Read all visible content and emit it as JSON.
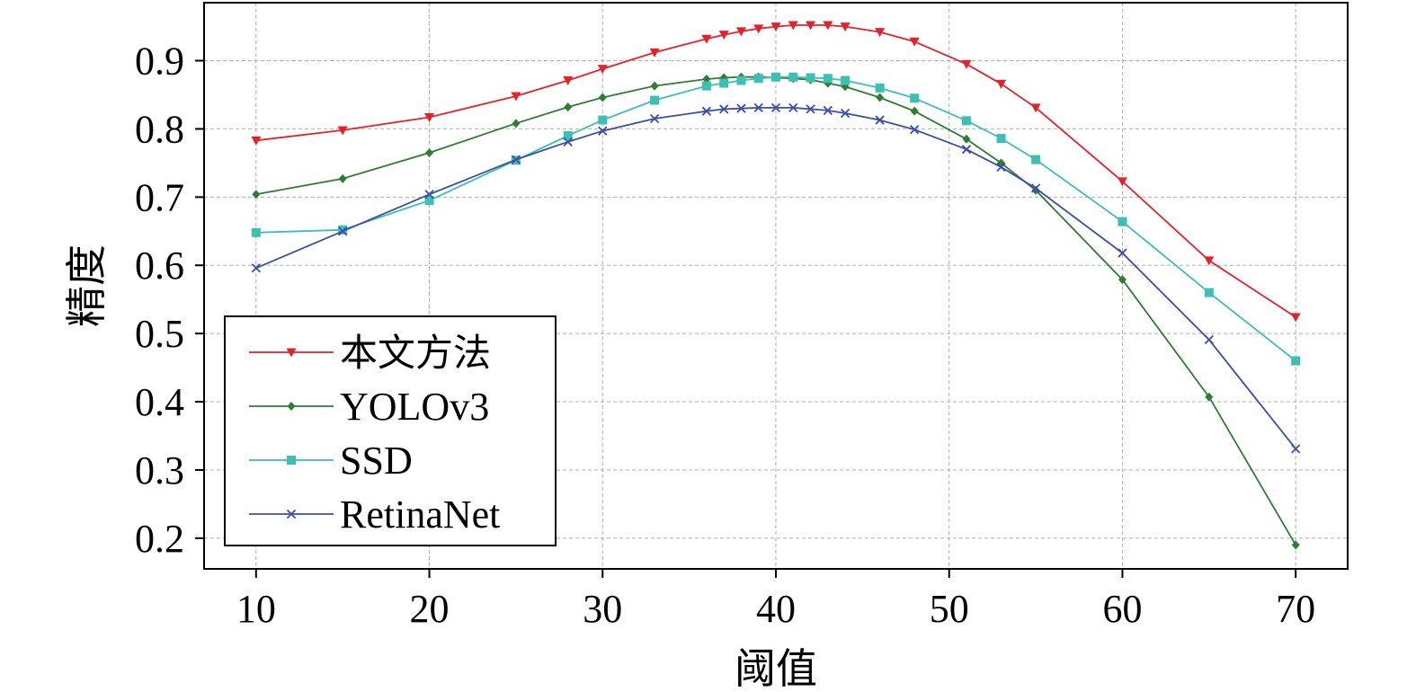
{
  "chart_data": {
    "type": "line",
    "title": "",
    "xlabel": "阈值",
    "ylabel": "精度",
    "xlim": [
      7,
      73
    ],
    "ylim": [
      0.155,
      0.985
    ],
    "xticks": [
      10,
      20,
      30,
      40,
      50,
      60,
      70
    ],
    "yticks": [
      0.2,
      0.3,
      0.4,
      0.5,
      0.6,
      0.7,
      0.8,
      0.9
    ],
    "grid": true,
    "legend_position": "bottom-left",
    "series": [
      {
        "name": "本文方法",
        "color": "#e8202a",
        "marker": "triangle-down",
        "x": [
          10,
          15,
          20,
          25,
          28,
          30,
          33,
          36,
          37,
          38,
          39,
          40,
          41,
          42,
          43,
          44,
          46,
          48,
          51,
          53,
          55,
          60,
          65,
          70
        ],
        "y": [
          0.783,
          0.798,
          0.817,
          0.848,
          0.871,
          0.888,
          0.912,
          0.932,
          0.938,
          0.943,
          0.947,
          0.95,
          0.952,
          0.952,
          0.952,
          0.95,
          0.942,
          0.928,
          0.895,
          0.866,
          0.831,
          0.723,
          0.607,
          0.524
        ]
      },
      {
        "name": "YOLOv3",
        "color": "#2e7d32",
        "marker": "diamond",
        "x": [
          10,
          15,
          20,
          25,
          28,
          30,
          33,
          36,
          37,
          38,
          39,
          40,
          41,
          42,
          43,
          44,
          46,
          48,
          51,
          53,
          55,
          60,
          65,
          70
        ],
        "y": [
          0.704,
          0.727,
          0.765,
          0.808,
          0.832,
          0.846,
          0.863,
          0.873,
          0.875,
          0.876,
          0.876,
          0.875,
          0.874,
          0.872,
          0.867,
          0.862,
          0.846,
          0.826,
          0.785,
          0.75,
          0.71,
          0.579,
          0.407,
          0.19
        ]
      },
      {
        "name": "SSD",
        "color": "#3dbfb3",
        "marker": "square",
        "x": [
          10,
          15,
          20,
          25,
          28,
          30,
          33,
          36,
          37,
          38,
          39,
          40,
          41,
          42,
          43,
          44,
          46,
          48,
          51,
          53,
          55,
          60,
          65,
          70
        ],
        "y": [
          0.648,
          0.652,
          0.695,
          0.754,
          0.79,
          0.813,
          0.842,
          0.863,
          0.867,
          0.871,
          0.874,
          0.876,
          0.876,
          0.875,
          0.874,
          0.871,
          0.86,
          0.845,
          0.812,
          0.786,
          0.755,
          0.664,
          0.56,
          0.46
        ]
      },
      {
        "name": "RetinaNet",
        "color": "#3b4fa8",
        "marker": "x",
        "x": [
          10,
          15,
          20,
          25,
          28,
          30,
          33,
          36,
          37,
          38,
          39,
          40,
          41,
          42,
          43,
          44,
          46,
          48,
          51,
          53,
          55,
          60,
          65,
          70
        ],
        "y": [
          0.596,
          0.65,
          0.704,
          0.755,
          0.781,
          0.797,
          0.815,
          0.826,
          0.829,
          0.83,
          0.831,
          0.831,
          0.831,
          0.829,
          0.827,
          0.823,
          0.813,
          0.799,
          0.77,
          0.744,
          0.713,
          0.618,
          0.491,
          0.331
        ]
      }
    ]
  }
}
